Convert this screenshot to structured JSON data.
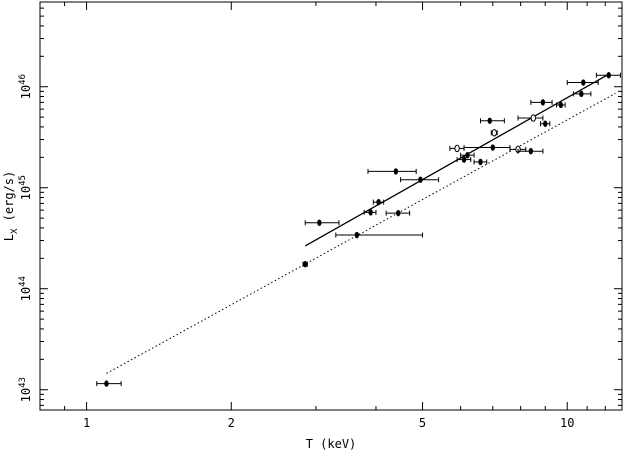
{
  "chart_data": {
    "type": "scatter",
    "title": "",
    "xlabel": "T (keV)",
    "ylabel": "L_X (erg/s)",
    "xscale": "log",
    "yscale": "log",
    "xlim": [
      0.8,
      13
    ],
    "ylim": [
      6.3e+42,
      6.9e+46
    ],
    "x_ticks": [
      {
        "value": 1,
        "label": "1"
      },
      {
        "value": 2,
        "label": "2"
      },
      {
        "value": 5,
        "label": "5"
      },
      {
        "value": 10,
        "label": "10"
      }
    ],
    "y_ticks": [
      {
        "value": 1e+43,
        "base": "10",
        "exp": "43"
      },
      {
        "value": 1e+44,
        "base": "10",
        "exp": "44"
      },
      {
        "value": 1e+45,
        "base": "10",
        "exp": "45"
      },
      {
        "value": 1e+46,
        "base": "10",
        "exp": "46"
      }
    ],
    "grid": false,
    "points": [
      {
        "T": 1.1,
        "T_lo": 1.05,
        "T_hi": 1.18,
        "L": 1.15e+43,
        "marker": "filled"
      },
      {
        "T": 2.85,
        "T_lo": 2.82,
        "T_hi": 2.88,
        "L": 1.75e+44,
        "marker": "filled"
      },
      {
        "T": 3.05,
        "T_lo": 2.85,
        "T_hi": 3.35,
        "L": 4.5e+44,
        "marker": "filled"
      },
      {
        "T": 3.65,
        "T_lo": 3.3,
        "T_hi": 5.0,
        "L": 3.4e+44,
        "marker": "filled"
      },
      {
        "T": 3.9,
        "T_lo": 3.78,
        "T_hi": 4.0,
        "L": 5.7e+44,
        "marker": "filled"
      },
      {
        "T": 4.05,
        "T_lo": 3.95,
        "T_hi": 4.15,
        "L": 7.2e+44,
        "marker": "filled"
      },
      {
        "T": 4.4,
        "T_lo": 3.85,
        "T_hi": 4.85,
        "L": 1.45e+45,
        "marker": "filled"
      },
      {
        "T": 4.45,
        "T_lo": 4.2,
        "T_hi": 4.7,
        "L": 5.6e+44,
        "marker": "filled"
      },
      {
        "T": 4.95,
        "T_lo": 4.5,
        "T_hi": 5.4,
        "L": 1.2e+45,
        "marker": "filled"
      },
      {
        "T": 5.9,
        "T_lo": 5.7,
        "T_hi": 6.1,
        "L": 2.45e+45,
        "marker": "open"
      },
      {
        "T": 6.1,
        "T_lo": 5.9,
        "T_hi": 6.3,
        "L": 1.9e+45,
        "marker": "filled"
      },
      {
        "T": 6.2,
        "T_lo": 6.0,
        "T_hi": 6.4,
        "L": 2.1e+45,
        "marker": "filled"
      },
      {
        "T": 6.6,
        "T_lo": 6.4,
        "T_hi": 6.8,
        "L": 1.8e+45,
        "marker": "filled"
      },
      {
        "T": 6.9,
        "T_lo": 6.6,
        "T_hi": 7.4,
        "L": 4.6e+45,
        "marker": "filled"
      },
      {
        "T": 7.0,
        "T_lo": 6.1,
        "T_hi": 7.6,
        "L": 2.5e+45,
        "marker": "filled"
      },
      {
        "T": 7.05,
        "T_lo": 6.95,
        "T_hi": 7.15,
        "L": 3.5e+45,
        "marker": "open"
      },
      {
        "T": 7.9,
        "T_lo": 7.6,
        "T_hi": 8.2,
        "L": 2.4e+45,
        "marker": "open"
      },
      {
        "T": 8.4,
        "T_lo": 7.9,
        "T_hi": 8.9,
        "L": 2.3e+45,
        "marker": "filled"
      },
      {
        "T": 8.5,
        "T_lo": 7.9,
        "T_hi": 8.9,
        "L": 4.9e+45,
        "marker": "open"
      },
      {
        "T": 8.9,
        "T_lo": 8.4,
        "T_hi": 9.3,
        "L": 7e+45,
        "marker": "filled"
      },
      {
        "T": 9.0,
        "T_lo": 8.8,
        "T_hi": 9.2,
        "L": 4.3e+45,
        "marker": "filled"
      },
      {
        "T": 9.7,
        "T_lo": 9.5,
        "T_hi": 9.9,
        "L": 6.6e+45,
        "marker": "filled"
      },
      {
        "T": 10.7,
        "T_lo": 10.3,
        "T_hi": 11.2,
        "L": 8.5e+45,
        "marker": "filled"
      },
      {
        "T": 10.8,
        "T_lo": 10.0,
        "T_hi": 11.6,
        "L": 1.1e+46,
        "marker": "filled"
      },
      {
        "T": 12.2,
        "T_lo": 11.5,
        "T_hi": 12.9,
        "L": 1.3e+46,
        "marker": "filled"
      }
    ],
    "fit_lines": [
      {
        "style": "solid",
        "x": [
          2.85,
          12.2
        ],
        "y": [
          2.65e+44,
          1.33e+46
        ]
      },
      {
        "style": "dotted",
        "x": [
          1.1,
          12.6
        ],
        "y": [
          1.45e+43,
          8.6e+45
        ]
      }
    ]
  }
}
